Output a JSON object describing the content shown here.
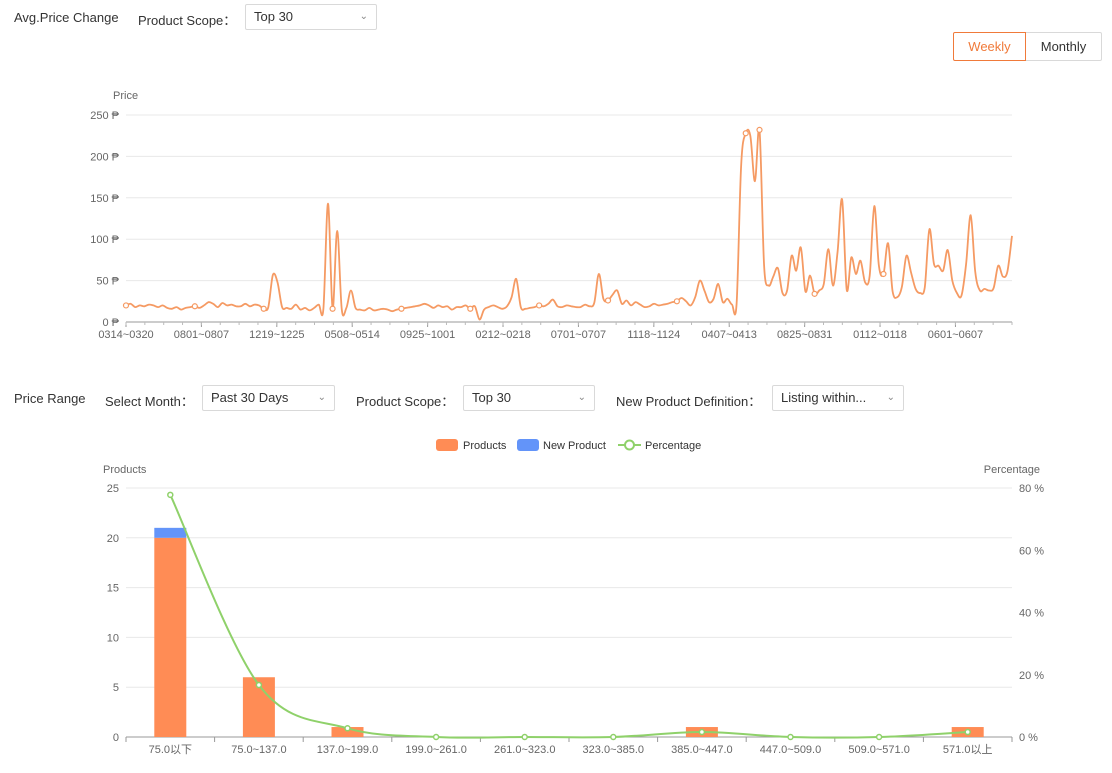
{
  "top": {
    "section_title": "Avg.Price Change",
    "scope_label": "Product Scope：",
    "scope_value": "Top 30",
    "weekly_label": "Weekly",
    "monthly_label": "Monthly"
  },
  "bottom": {
    "section_title": "Price Range",
    "month_label": "Select Month：",
    "month_value": "Past 30 Days",
    "scope_label": "Product Scope：",
    "scope_value": "Top 30",
    "newdef_label": "New Product Definition：",
    "newdef_value": "Listing within..."
  },
  "colors": {
    "accent": "#f07a3a",
    "products": "#ff8c55",
    "new_product": "#6394f9",
    "percentage": "#8fd16a",
    "grid": "#e8e8e8",
    "axis_text": "#666666"
  },
  "icons": {
    "dropdown": "chevron-down-icon"
  },
  "chart_data": [
    {
      "type": "line",
      "ylabel": "Price",
      "ylim": [
        0,
        250
      ],
      "yticks": [
        "0 ₱",
        "50 ₱",
        "100 ₱",
        "150 ₱",
        "200 ₱",
        "250 ₱"
      ],
      "x_ticks": [
        "0314~0320",
        "0801~0807",
        "1219~1225",
        "0508~0514",
        "0925~1001",
        "0212~0218",
        "0701~0707",
        "1118~1124",
        "0407~0413",
        "0825~0831",
        "0112~0118",
        "0601~0607"
      ],
      "color": "#f59a63",
      "values": [
        20,
        22,
        18,
        20,
        19,
        21,
        20,
        18,
        20,
        17,
        16,
        18,
        15,
        17,
        18,
        19,
        17,
        20,
        24,
        22,
        18,
        23,
        20,
        21,
        19,
        19,
        22,
        19,
        21,
        20,
        16,
        18,
        57,
        48,
        18,
        17,
        16,
        21,
        15,
        17,
        14,
        17,
        21,
        16,
        143,
        16,
        110,
        15,
        17,
        38,
        17,
        15,
        14,
        17,
        14,
        15,
        16,
        15,
        13,
        15,
        16,
        17,
        18,
        19,
        20,
        22,
        20,
        17,
        20,
        18,
        19,
        15,
        18,
        18,
        20,
        16,
        19,
        3,
        15,
        18,
        20,
        18,
        16,
        19,
        30,
        52,
        18,
        16,
        17,
        18,
        20,
        19,
        22,
        27,
        19,
        18,
        20,
        19,
        18,
        18,
        21,
        19,
        23,
        58,
        28,
        26,
        33,
        38,
        22,
        26,
        20,
        24,
        21,
        18,
        19,
        22,
        20,
        21,
        22,
        24,
        25,
        29,
        25,
        20,
        30,
        50,
        38,
        24,
        28,
        46,
        24,
        28,
        21,
        22,
        190,
        228,
        225,
        170,
        232,
        68,
        44,
        55,
        65,
        35,
        38,
        80,
        62,
        90,
        37,
        56,
        34,
        38,
        46,
        88,
        44,
        85,
        148,
        39,
        78,
        58,
        74,
        48,
        56,
        140,
        68,
        58,
        95,
        37,
        30,
        42,
        80,
        60,
        40,
        35,
        42,
        112,
        70,
        68,
        62,
        87,
        50,
        35,
        32,
        70,
        129,
        60,
        38,
        40,
        38,
        41,
        68,
        55,
        61,
        104
      ]
    },
    {
      "type": "bar",
      "categories": [
        "75.0以下",
        "75.0~137.0",
        "137.0~199.0",
        "199.0~261.0",
        "261.0~323.0",
        "323.0~385.0",
        "385.0~447.0",
        "447.0~509.0",
        "509.0~571.0",
        "571.0以上"
      ],
      "series": [
        {
          "name": "Products",
          "values": [
            20,
            6,
            1,
            0,
            0,
            0,
            1,
            0,
            0,
            1
          ]
        },
        {
          "name": "New Product",
          "values": [
            1,
            0,
            0,
            0,
            0,
            0,
            0,
            0,
            0,
            0
          ]
        },
        {
          "name": "Percentage",
          "type": "line",
          "axis": "right",
          "values": [
            77.8,
            16.7,
            2.8,
            0,
            0,
            0,
            1.6,
            0,
            0,
            1.6
          ]
        }
      ],
      "ylabel": "Products",
      "ylabel_right": "Percentage",
      "ylim": [
        0,
        25
      ],
      "ylim_right": [
        0,
        80
      ],
      "yticks": [
        "0",
        "5",
        "10",
        "15",
        "20",
        "25"
      ],
      "yticks_right": [
        "0 %",
        "20 %",
        "40 %",
        "60 %",
        "80 %"
      ],
      "legend": [
        "Products",
        "New Product",
        "Percentage"
      ],
      "legend_position": "top-center"
    }
  ]
}
